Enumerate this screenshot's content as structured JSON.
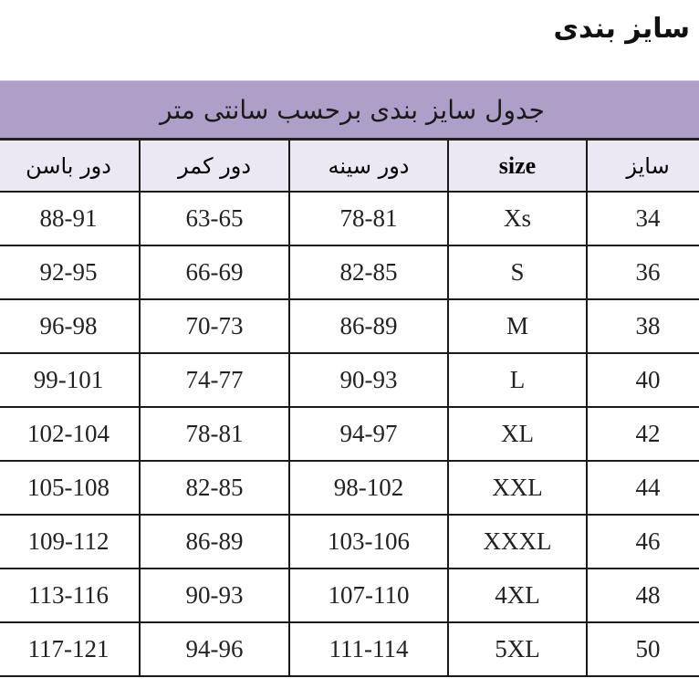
{
  "page_title": "سایز بندی",
  "table": {
    "caption": "جدول سایز بندی برحسب سانتی متر",
    "headers": {
      "hip": "دور باسن",
      "waist": "دور کمر",
      "chest": "دور سینه",
      "size_en": "size",
      "size_fa": "سایز"
    },
    "rows": [
      {
        "hip": "88-91",
        "waist": "63-65",
        "chest": "78-81",
        "size_en": "Xs",
        "size_fa": "34"
      },
      {
        "hip": "92-95",
        "waist": "66-69",
        "chest": "82-85",
        "size_en": "S",
        "size_fa": "36"
      },
      {
        "hip": "96-98",
        "waist": "70-73",
        "chest": "86-89",
        "size_en": "M",
        "size_fa": "38"
      },
      {
        "hip": "99-101",
        "waist": "74-77",
        "chest": "90-93",
        "size_en": "L",
        "size_fa": "40"
      },
      {
        "hip": "102-104",
        "waist": "78-81",
        "chest": "94-97",
        "size_en": "XL",
        "size_fa": "42"
      },
      {
        "hip": "105-108",
        "waist": "82-85",
        "chest": "98-102",
        "size_en": "XXL",
        "size_fa": "44"
      },
      {
        "hip": "109-112",
        "waist": "86-89",
        "chest": "103-106",
        "size_en": "XXXL",
        "size_fa": "46"
      },
      {
        "hip": "113-116",
        "waist": "90-93",
        "chest": "107-110",
        "size_en": "4XL",
        "size_fa": "48"
      },
      {
        "hip": "117-121",
        "waist": "94-96",
        "chest": "111-114",
        "size_en": "5XL",
        "size_fa": "50"
      }
    ]
  },
  "colors": {
    "caption_bg": "#ae9fc9",
    "header_bg": "#ece8f3"
  }
}
